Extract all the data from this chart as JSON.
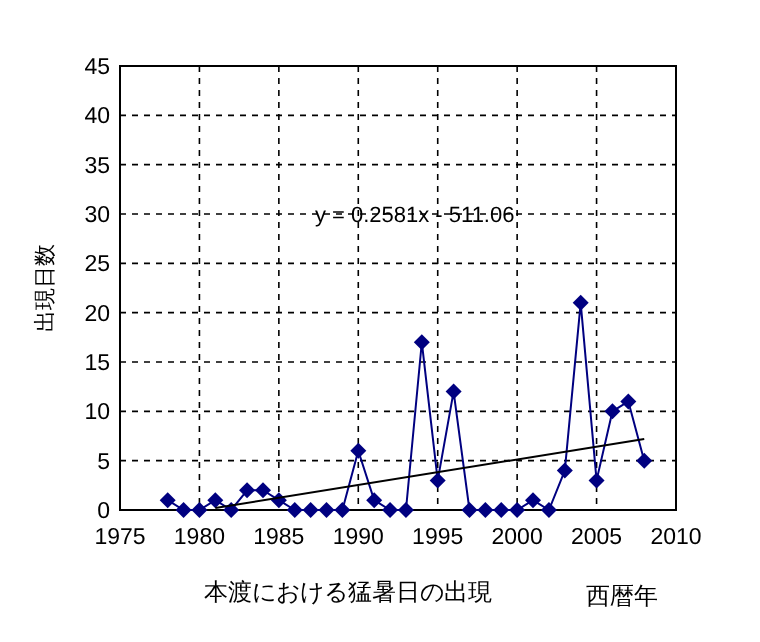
{
  "chart_data": {
    "type": "line",
    "title": "本渡における猛暑日の出現",
    "xlabel": "西暦年",
    "ylabel": "出現日数",
    "x": [
      1978,
      1979,
      1980,
      1981,
      1982,
      1983,
      1984,
      1985,
      1986,
      1987,
      1988,
      1989,
      1990,
      1991,
      1992,
      1993,
      1994,
      1995,
      1996,
      1997,
      1998,
      1999,
      2000,
      2001,
      2002,
      2003,
      2004,
      2005,
      2006,
      2007,
      2008
    ],
    "series": [
      {
        "color": "#000080",
        "marker": "diamond",
        "values": [
          1,
          0,
          0,
          1,
          0,
          2,
          2,
          1,
          0,
          0,
          0,
          0,
          6,
          1,
          0,
          0,
          17,
          3,
          12,
          0,
          0,
          0,
          0,
          1,
          0,
          4,
          21,
          3,
          10,
          11,
          5
        ]
      },
      {
        "type": "line",
        "color": "#000000",
        "marker": "none",
        "x": [
          1981,
          2008
        ],
        "values": [
          0.2,
          7.2
        ]
      }
    ],
    "annotations": [
      "y = 0.2581x - 511.06"
    ],
    "xlim": [
      1975,
      2010
    ],
    "xticks": [
      1975,
      1980,
      1985,
      1990,
      1995,
      2000,
      2005,
      2010
    ],
    "ylim": [
      0,
      45
    ],
    "yticks": [
      0,
      5,
      10,
      15,
      20,
      25,
      30,
      35,
      40,
      45
    ],
    "grid": true
  }
}
